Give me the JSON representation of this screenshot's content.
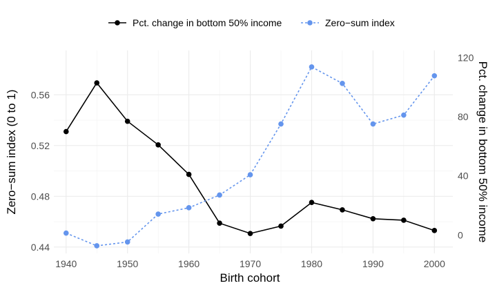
{
  "chart_data": {
    "type": "line",
    "xlabel": "Birth cohort",
    "ylabel_left": "Zero−sum index (0 to 1)",
    "ylabel_right": "Pct. change in bottom 50% income",
    "x_ticks": [
      1940,
      1950,
      1960,
      1970,
      1980,
      1990,
      2000
    ],
    "y_left_ticks": [
      0.44,
      0.48,
      0.52,
      0.56
    ],
    "y_right_ticks": [
      0,
      40,
      80,
      120
    ],
    "xlim": [
      1938,
      2003
    ],
    "ylim_left": [
      0.435,
      0.595
    ],
    "ylim_right": [
      -12.5,
      125
    ],
    "grid": true,
    "legend_position": "top",
    "x": [
      1940,
      1945,
      1950,
      1955,
      1960,
      1965,
      1970,
      1975,
      1980,
      1985,
      1990,
      1995,
      2000
    ],
    "series": [
      {
        "name": "Pct. change in bottom 50% income",
        "axis": "right",
        "style": "solid",
        "color": "#000000",
        "values": [
          70,
          103,
          77,
          61,
          41,
          8,
          1,
          6,
          22,
          17,
          11,
          10,
          3
        ]
      },
      {
        "name": "Zero−sum index",
        "axis": "left",
        "style": "dashed",
        "color": "#6495ED",
        "values": [
          0.451,
          0.441,
          0.444,
          0.466,
          0.471,
          0.481,
          0.497,
          0.537,
          0.582,
          0.569,
          0.537,
          0.544,
          0.575
        ]
      }
    ]
  }
}
